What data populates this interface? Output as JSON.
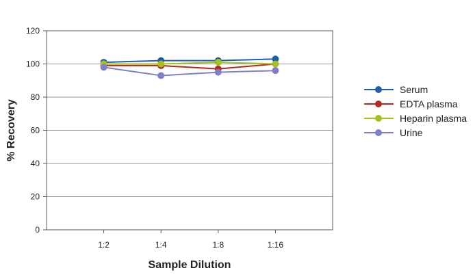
{
  "chart_data": {
    "type": "line",
    "xlabel": "Sample Dilution",
    "ylabel": "% Recovery",
    "categories": [
      "1:2",
      "1:4",
      "1:8",
      "1:16"
    ],
    "ylim": [
      0,
      120
    ],
    "yticks": [
      0,
      20,
      40,
      60,
      80,
      100,
      120
    ],
    "grid": true,
    "legend_position": "right",
    "series": [
      {
        "name": "Serum",
        "color": "#1f5fa8",
        "values": [
          101,
          102,
          102,
          103
        ]
      },
      {
        "name": "EDTA plasma",
        "color": "#b22a1e",
        "values": [
          99,
          99,
          97,
          100
        ]
      },
      {
        "name": "Heparin plasma",
        "color": "#a8c020",
        "values": [
          100,
          100,
          101,
          100
        ]
      },
      {
        "name": "Urine",
        "color": "#8080c8",
        "values": [
          98,
          93,
          95,
          96
        ]
      }
    ]
  }
}
